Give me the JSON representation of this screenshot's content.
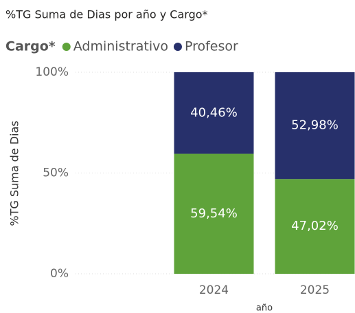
{
  "chart_data": {
    "type": "stacked_bar_100",
    "title": "%TG Suma de Dias por año y Cargo*",
    "legend_title": "Cargo*",
    "y_label": "%TG Suma de Dias",
    "x_label": "año",
    "categories": [
      "2024",
      "2025"
    ],
    "series": [
      {
        "name": "Administrativo",
        "color": "#5fa33a",
        "values": [
          59.54,
          47.02
        ],
        "value_labels": [
          "59,54%",
          "47,02%"
        ]
      },
      {
        "name": "Profesor",
        "color": "#27306b",
        "values": [
          40.46,
          52.98
        ],
        "value_labels": [
          "40,46%",
          "52,98%"
        ]
      }
    ],
    "ylim": [
      0,
      100
    ],
    "yticks": [
      {
        "value": 0,
        "label": "0%"
      },
      {
        "value": 50,
        "label": "50%"
      },
      {
        "value": 100,
        "label": "100%"
      }
    ],
    "grid": true,
    "legend": "top-left"
  }
}
